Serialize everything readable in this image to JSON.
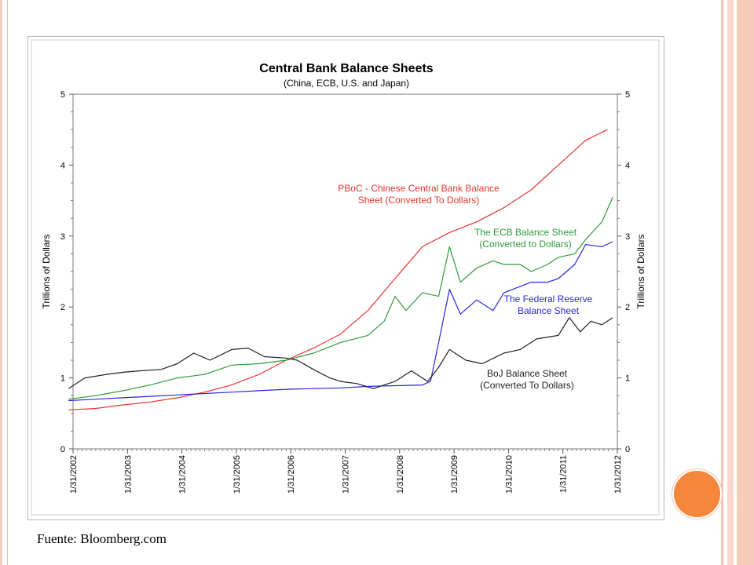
{
  "source_note": "Fuente: Bloomberg.com",
  "chart_data": {
    "type": "line",
    "title": "Central Bank Balance Sheets",
    "subtitle": "(China, ECB, U.S. and Japan)",
    "ylabel_left": "Trillions of Dollars",
    "ylabel_right": "Trillions of Dollars",
    "ylim": [
      0,
      5
    ],
    "yticks": [
      "0",
      "1",
      "2",
      "3",
      "4",
      "5"
    ],
    "xlim": [
      2002.083,
      2012.083
    ],
    "xticks": [
      {
        "label": "1/31/2002",
        "value": 2002.083
      },
      {
        "label": "1/31/2003",
        "value": 2003.083
      },
      {
        "label": "1/31/2004",
        "value": 2004.083
      },
      {
        "label": "1/31/2005",
        "value": 2005.083
      },
      {
        "label": "1/31/2006",
        "value": 2006.083
      },
      {
        "label": "1/31/2007",
        "value": 2007.083
      },
      {
        "label": "1/31/2008",
        "value": 2008.083
      },
      {
        "label": "1/31/2009",
        "value": 2009.083
      },
      {
        "label": "1/31/2010",
        "value": 2010.083
      },
      {
        "label": "1/31/2011",
        "value": 2011.083
      },
      {
        "label": "1/31/2012",
        "value": 2012.083
      }
    ],
    "grid": false,
    "series": [
      {
        "name": "PBoC - Chinese Central Bank Balance Sheet (Converted To Dollars)",
        "label_lines": [
          "PBoC - Chinese Central Bank Balance",
          "Sheet (Converted To Dollars)"
        ],
        "color": "#e8322e",
        "x": [
          2002.0,
          2002.5,
          2003.0,
          2003.5,
          2004.0,
          2004.5,
          2005.0,
          2005.5,
          2006.0,
          2006.5,
          2007.0,
          2007.5,
          2008.0,
          2008.5,
          2009.0,
          2009.5,
          2010.0,
          2010.5,
          2011.0,
          2011.5,
          2011.9
        ],
        "y": [
          0.55,
          0.57,
          0.62,
          0.66,
          0.72,
          0.8,
          0.9,
          1.05,
          1.25,
          1.42,
          1.62,
          1.95,
          2.4,
          2.85,
          3.05,
          3.2,
          3.4,
          3.65,
          4.0,
          4.35,
          4.5
        ]
      },
      {
        "name": "The ECB Balance Sheet (Converted to Dollars)",
        "label_lines": [
          "The ECB Balance Sheet",
          "(Converted to Dollars)"
        ],
        "color": "#2f9a3a",
        "x": [
          2002.0,
          2002.5,
          2003.0,
          2003.5,
          2004.0,
          2004.5,
          2005.0,
          2005.5,
          2006.0,
          2006.5,
          2007.0,
          2007.5,
          2007.8,
          2008.0,
          2008.2,
          2008.5,
          2008.8,
          2009.0,
          2009.2,
          2009.5,
          2009.8,
          2010.0,
          2010.3,
          2010.5,
          2010.8,
          2011.0,
          2011.3,
          2011.5,
          2011.8,
          2012.0
        ],
        "y": [
          0.7,
          0.75,
          0.82,
          0.9,
          1.0,
          1.05,
          1.18,
          1.2,
          1.25,
          1.35,
          1.5,
          1.6,
          1.8,
          2.15,
          1.95,
          2.2,
          2.15,
          2.85,
          2.35,
          2.55,
          2.65,
          2.6,
          2.6,
          2.5,
          2.6,
          2.7,
          2.75,
          2.95,
          3.2,
          3.55
        ]
      },
      {
        "name": "The Federal Reserve Balance Sheet",
        "label_lines": [
          "The Federal Reserve",
          "Balance Sheet"
        ],
        "color": "#2727e0",
        "x": [
          2002.0,
          2002.5,
          2003.0,
          2003.5,
          2004.0,
          2004.5,
          2005.0,
          2005.5,
          2006.0,
          2006.5,
          2007.0,
          2007.5,
          2008.0,
          2008.5,
          2008.65,
          2008.8,
          2009.0,
          2009.2,
          2009.5,
          2009.8,
          2010.0,
          2010.5,
          2010.8,
          2011.0,
          2011.3,
          2011.5,
          2011.8,
          2012.0
        ],
        "y": [
          0.68,
          0.7,
          0.72,
          0.74,
          0.76,
          0.78,
          0.8,
          0.82,
          0.84,
          0.85,
          0.86,
          0.88,
          0.89,
          0.9,
          0.95,
          1.5,
          2.25,
          1.9,
          2.1,
          1.95,
          2.2,
          2.35,
          2.35,
          2.4,
          2.6,
          2.88,
          2.85,
          2.92
        ]
      },
      {
        "name": "BoJ Balance Sheet (Converted To Dollars)",
        "label_lines": [
          "BoJ Balance Sheet",
          "(Converted To Dollars)"
        ],
        "color": "#222222",
        "x": [
          2002.0,
          2002.3,
          2002.7,
          2003.0,
          2003.3,
          2003.7,
          2004.0,
          2004.3,
          2004.6,
          2005.0,
          2005.3,
          2005.6,
          2006.0,
          2006.2,
          2006.5,
          2006.8,
          2007.0,
          2007.3,
          2007.6,
          2008.0,
          2008.3,
          2008.6,
          2008.8,
          2009.0,
          2009.3,
          2009.6,
          2010.0,
          2010.3,
          2010.6,
          2011.0,
          2011.2,
          2011.4,
          2011.6,
          2011.8,
          2012.0
        ],
        "y": [
          0.85,
          1.0,
          1.05,
          1.08,
          1.1,
          1.12,
          1.2,
          1.35,
          1.25,
          1.4,
          1.42,
          1.3,
          1.28,
          1.25,
          1.12,
          1.0,
          0.95,
          0.92,
          0.85,
          0.95,
          1.1,
          0.95,
          1.15,
          1.4,
          1.25,
          1.2,
          1.35,
          1.4,
          1.55,
          1.6,
          1.85,
          1.65,
          1.8,
          1.75,
          1.85
        ]
      }
    ],
    "legend": "inline labels next to lines"
  }
}
